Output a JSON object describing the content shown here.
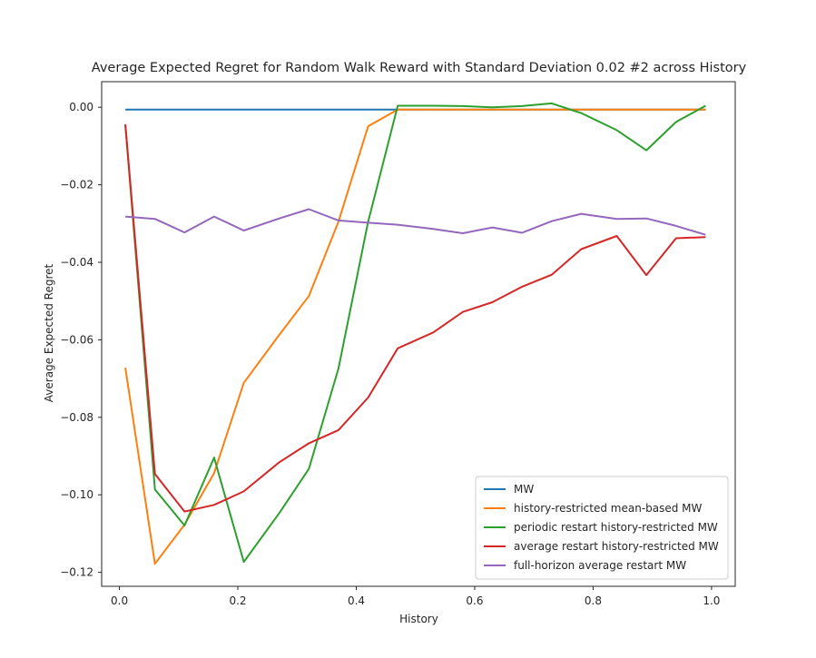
{
  "chart_data": {
    "type": "line",
    "title": "Average Expected Regret for Random Walk Reward with Standard Deviation 0.02 #2 across History",
    "xlabel": "History",
    "ylabel": "Average Expected Regret",
    "xlim": [
      -0.03,
      1.04
    ],
    "ylim": [
      -0.1236,
      0.0066
    ],
    "xticks": [
      0.0,
      0.2,
      0.4,
      0.6,
      0.8,
      1.0
    ],
    "xtick_labels": [
      "0.0",
      "0.2",
      "0.4",
      "0.6",
      "0.8",
      "1.0"
    ],
    "yticks": [
      0.0,
      -0.02,
      -0.04,
      -0.06,
      -0.08,
      -0.1,
      -0.12
    ],
    "ytick_labels": [
      "0.00",
      "−0.02",
      "−0.04",
      "−0.06",
      "−0.08",
      "−0.10",
      "−0.12"
    ],
    "grid": false,
    "legend_position": "lower-right",
    "x": [
      0.01,
      0.06,
      0.11,
      0.16,
      0.21,
      0.27,
      0.32,
      0.37,
      0.42,
      0.47,
      0.53,
      0.58,
      0.63,
      0.68,
      0.73,
      0.78,
      0.84,
      0.89,
      0.94,
      0.99
    ],
    "series": [
      {
        "name": "MW",
        "color": "#1f77b4",
        "values": [
          -0.0006,
          -0.0006,
          -0.0006,
          -0.0006,
          -0.0006,
          -0.0006,
          -0.0006,
          -0.0006,
          -0.0006,
          -0.0006,
          -0.0006,
          -0.0006,
          -0.0006,
          -0.0006,
          -0.0006,
          -0.0006,
          -0.0006,
          -0.0006,
          -0.0006,
          -0.0006
        ]
      },
      {
        "name": "history-restricted mean-based MW",
        "color": "#ff7f0e",
        "values": [
          -0.0672,
          -0.1178,
          -0.1077,
          -0.0944,
          -0.0711,
          -0.0587,
          -0.0487,
          -0.0295,
          -0.0049,
          -0.0006,
          -0.0006,
          -0.0006,
          -0.0006,
          -0.0006,
          -0.0006,
          -0.0006,
          -0.0006,
          -0.0006,
          -0.0006,
          -0.0006
        ]
      },
      {
        "name": "periodic restart history-restricted MW",
        "color": "#2ca02c",
        "values": [
          -0.0046,
          -0.0986,
          -0.1079,
          -0.0904,
          -0.1173,
          -0.1047,
          -0.0933,
          -0.0674,
          -0.0295,
          0.0004,
          0.0004,
          0.0003,
          0.0,
          0.0003,
          0.001,
          -0.0015,
          -0.0059,
          -0.0111,
          -0.0038,
          0.0004
        ]
      },
      {
        "name": "average restart history-restricted MW",
        "color": "#d62728",
        "values": [
          -0.0044,
          -0.0946,
          -0.1043,
          -0.1026,
          -0.0991,
          -0.0916,
          -0.0867,
          -0.0833,
          -0.0749,
          -0.0622,
          -0.0581,
          -0.0528,
          -0.0503,
          -0.0463,
          -0.0432,
          -0.0366,
          -0.0332,
          -0.0433,
          -0.0338,
          -0.0335
        ]
      },
      {
        "name": "full-horizon average restart MW",
        "color": "#9467bd",
        "values": [
          -0.0282,
          -0.0288,
          -0.0323,
          -0.0282,
          -0.0318,
          -0.0287,
          -0.0263,
          -0.0292,
          -0.0298,
          -0.0303,
          -0.0314,
          -0.0325,
          -0.031,
          -0.0324,
          -0.0294,
          -0.0275,
          -0.0288,
          -0.0287,
          -0.0306,
          -0.0329
        ]
      }
    ]
  }
}
